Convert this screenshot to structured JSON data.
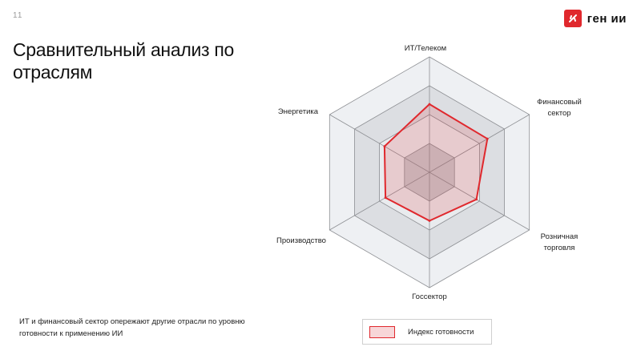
{
  "header": {
    "page_number": "11",
    "title": "Сравнительный анализ по отраслям",
    "logo_text": "ген ии",
    "brand_color": "#e0282d"
  },
  "note": {
    "text": "ИТ и финансовый сектор опережают другие отрасли по уровню готовности к применению ИИ"
  },
  "chart_data": {
    "type": "radar",
    "categories": [
      "ИТ/Телеком",
      "Финансовый сектор",
      "Розничная торговля",
      "Госсектор",
      "Производство",
      "Энергетика"
    ],
    "label_lines": [
      [
        "ИТ/Телеком"
      ],
      [
        "Финансовый",
        "сектор"
      ],
      [
        "Розничная",
        "торговля"
      ],
      [
        "Госсектор"
      ],
      [
        "Производство"
      ],
      [
        "Энергетика"
      ]
    ],
    "series": [
      {
        "name": "Индекс готовности",
        "values": [
          0.59,
          0.58,
          0.47,
          0.42,
          0.44,
          0.45
        ],
        "color": "#e0282d"
      }
    ],
    "rlim": [
      0,
      1
    ],
    "bands": 4,
    "legend": "bottom",
    "legend_label": "Индекс готовности"
  }
}
